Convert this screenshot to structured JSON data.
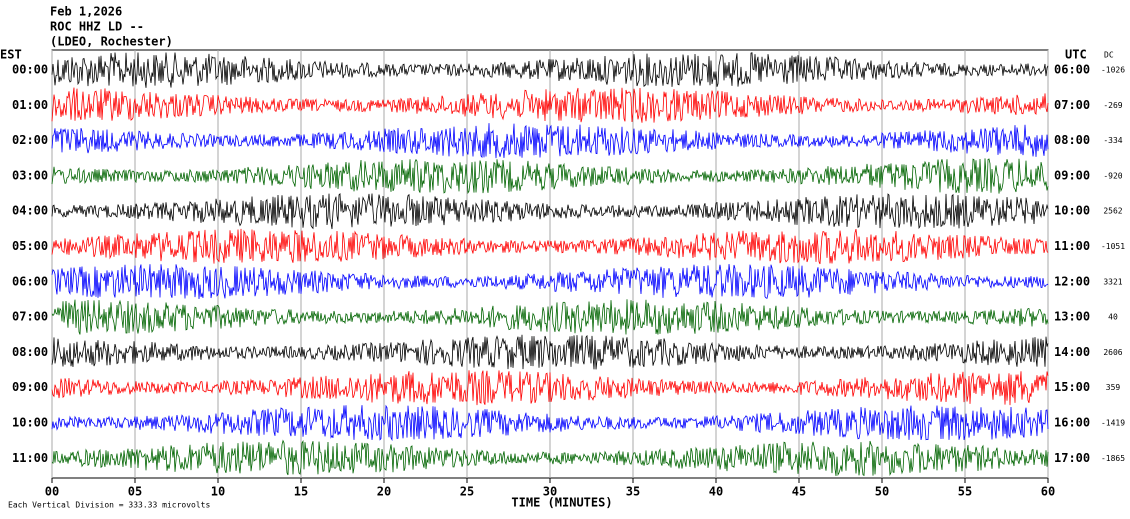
{
  "chart_data": {
    "type": "helicorder",
    "title_lines": [
      "Feb 1,2026",
      "ROC HHZ LD --",
      "(LDEO, Rochester)"
    ],
    "left_axis_title": "EST",
    "right_axis_title": "UTC",
    "dc_title": "DC",
    "left_labels": [
      "00:00",
      "01:00",
      "02:00",
      "03:00",
      "04:00",
      "05:00",
      "06:00",
      "07:00",
      "08:00",
      "09:00",
      "10:00",
      "11:00"
    ],
    "right_labels": [
      "06:00",
      "07:00",
      "08:00",
      "09:00",
      "10:00",
      "11:00",
      "12:00",
      "13:00",
      "14:00",
      "15:00",
      "16:00",
      "17:00"
    ],
    "dc": [
      -1026,
      -269,
      -334,
      -920,
      2562,
      -1051,
      3321,
      40,
      2606,
      359,
      -1419,
      -1865
    ],
    "colors": [
      "#000000",
      "#ff0000",
      "#0000ff",
      "#006400"
    ],
    "xlabel": "TIME (MINUTES)",
    "xlim": [
      0,
      60
    ],
    "xticks": [
      {
        "value": 0,
        "label": "00"
      },
      {
        "value": 5,
        "label": "05"
      },
      10,
      15,
      20,
      25,
      30,
      35,
      40,
      45,
      50,
      55,
      60
    ],
    "footnote": "Each Vertical Division =  333.33 microvolts"
  }
}
